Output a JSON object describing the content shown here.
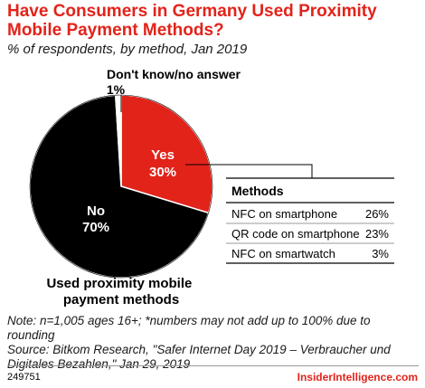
{
  "header": {
    "title": "Have Consumers in Germany Used Proximity Mobile Payment Methods?",
    "subtitle": "% of respondents, by method, Jan 2019"
  },
  "chart_data": {
    "type": "pie",
    "slices": [
      {
        "label": "Yes",
        "value": 30,
        "display": "30%",
        "color": "#e2231a"
      },
      {
        "label": "No",
        "value": 70,
        "display": "70%",
        "color": "#000000"
      },
      {
        "label": "Don't know/no answer",
        "value": 1,
        "display": "1%",
        "color": "#ffffff"
      }
    ],
    "caption": "Used proximity mobile payment methods",
    "methods_table": {
      "header": "Methods",
      "rows": [
        {
          "label": "NFC on smartphone",
          "value": "26%"
        },
        {
          "label": "QR code on smartphone",
          "value": "23%"
        },
        {
          "label": "NFC on smartwatch",
          "value": "3%"
        }
      ]
    }
  },
  "footer": {
    "note": "Note: n=1,005 ages 16+; *numbers may not add up to 100% due to rounding",
    "source": "Source: Bitkom Research, \"Safer Internet Day 2019 – Verbraucher und Digitales Bezahlen,\" Jan 29, 2019",
    "id": "249751",
    "brand": "InsiderIntelligence.com"
  }
}
